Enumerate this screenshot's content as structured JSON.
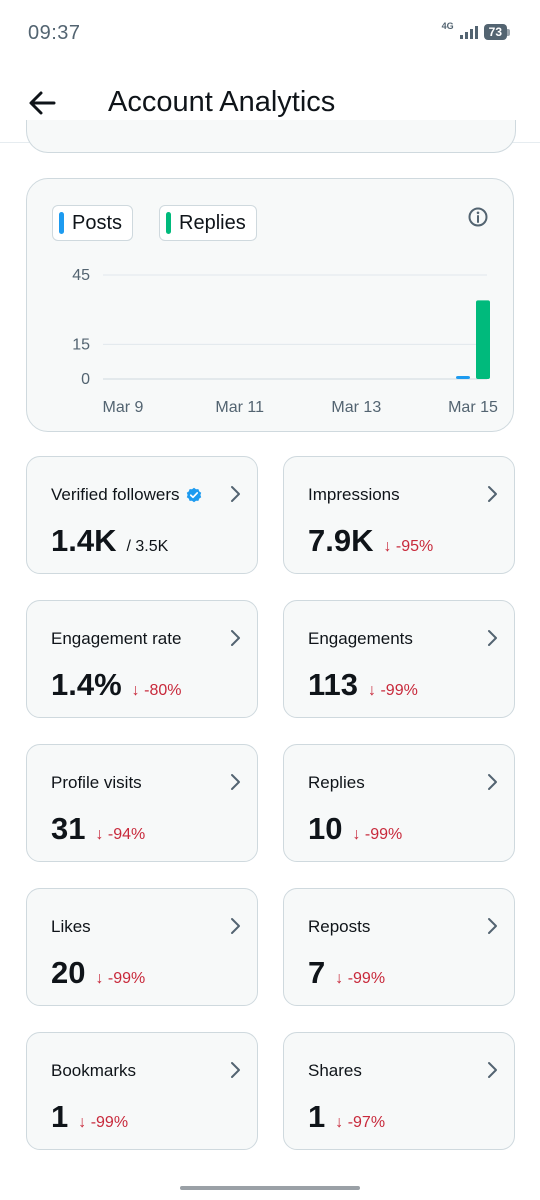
{
  "status_bar": {
    "time": "09:37",
    "network": "4G",
    "battery": "73"
  },
  "header": {
    "title": "Account Analytics"
  },
  "chart": {
    "legend": [
      {
        "label": "Posts",
        "color": "#1d9bf0"
      },
      {
        "label": "Replies",
        "color": "#00ba7c"
      }
    ]
  },
  "chart_data": {
    "type": "bar",
    "title": "",
    "xlabel": "",
    "ylabel": "",
    "x_tick_labels": [
      "Mar 9",
      "Mar 11",
      "Mar 13",
      "Mar 15"
    ],
    "y_tick_labels": [
      "0",
      "15",
      "45"
    ],
    "ylim": [
      0,
      45
    ],
    "grid": true,
    "categories": [
      "Mar 9",
      "Mar 10",
      "Mar 11",
      "Mar 12",
      "Mar 13",
      "Mar 14",
      "Mar 15"
    ],
    "series": [
      {
        "name": "Posts",
        "color": "#1d9bf0",
        "values": [
          0,
          0,
          0,
          0,
          0,
          0,
          1
        ]
      },
      {
        "name": "Replies",
        "color": "#00ba7c",
        "values": [
          0,
          0,
          0,
          0,
          0,
          0,
          34
        ]
      }
    ]
  },
  "metrics": [
    {
      "label": "Verified followers",
      "value": "1.4K",
      "sub": "/ 3.5K",
      "verified": true
    },
    {
      "label": "Impressions",
      "value": "7.9K",
      "delta": "↓ -95%"
    },
    {
      "label": "Engagement rate",
      "value": "1.4%",
      "delta": "↓ -80%"
    },
    {
      "label": "Engagements",
      "value": "113",
      "delta": "↓ -99%"
    },
    {
      "label": "Profile visits",
      "value": "31",
      "delta": "↓ -94%"
    },
    {
      "label": "Replies",
      "value": "10",
      "delta": "↓ -99%"
    },
    {
      "label": "Likes",
      "value": "20",
      "delta": "↓ -99%"
    },
    {
      "label": "Reposts",
      "value": "7",
      "delta": "↓ -99%"
    },
    {
      "label": "Bookmarks",
      "value": "1",
      "delta": "↓ -99%"
    },
    {
      "label": "Shares",
      "value": "1",
      "delta": "↓ -97%"
    }
  ]
}
